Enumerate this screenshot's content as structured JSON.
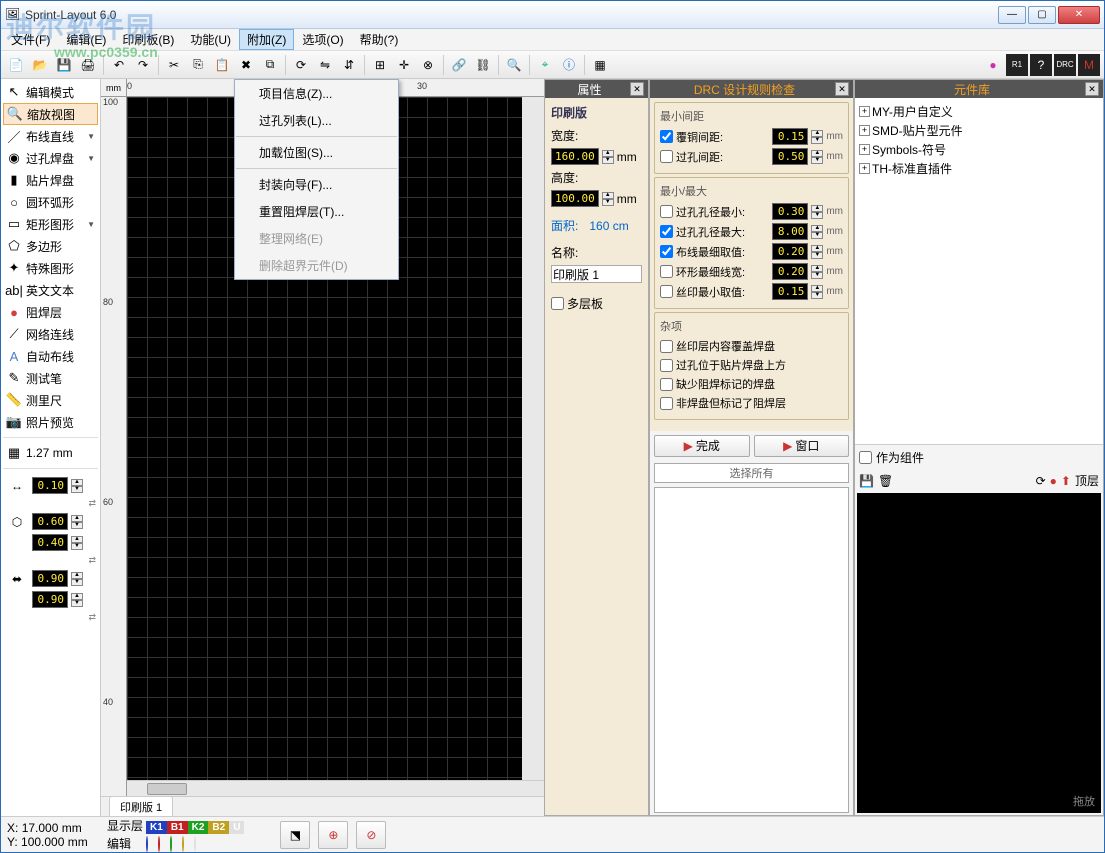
{
  "window": {
    "title": "Sprint-Layout 6.0"
  },
  "watermark": {
    "text": "迪尔软件园",
    "url": "www.pc0359.cn"
  },
  "menus": [
    "文件(F)",
    "编辑(E)",
    "印刷板(B)",
    "功能(U)",
    "附加(Z)",
    "选项(O)",
    "帮助(?)"
  ],
  "menu_active": 4,
  "dropdown": {
    "items": [
      {
        "label": "项目信息(Z)...",
        "enabled": true
      },
      {
        "label": "过孔列表(L)...",
        "enabled": true
      },
      {
        "sep": true
      },
      {
        "label": "加载位图(S)...",
        "enabled": true
      },
      {
        "sep": true
      },
      {
        "label": "封装向导(F)...",
        "enabled": true
      },
      {
        "label": "重置阻焊层(T)...",
        "enabled": true
      },
      {
        "label": "整理网络(E)",
        "enabled": false
      },
      {
        "label": "删除超界元件(D)",
        "enabled": false
      }
    ]
  },
  "tools": [
    {
      "icon": "↖",
      "label": "编辑模式"
    },
    {
      "icon": "🔍",
      "label": "缩放视图",
      "active": true
    },
    {
      "icon": "／",
      "label": "布线直线",
      "drop": true
    },
    {
      "icon": "◉",
      "label": "过孔焊盘",
      "drop": true
    },
    {
      "icon": "▮",
      "label": "贴片焊盘"
    },
    {
      "icon": "○",
      "label": "圆环弧形"
    },
    {
      "icon": "▭",
      "label": "矩形图形",
      "drop": true
    },
    {
      "icon": "⬠",
      "label": "多边形"
    },
    {
      "icon": "✦",
      "label": "特殊图形"
    },
    {
      "icon": "ab|",
      "label": "英文文本"
    },
    {
      "icon": "●",
      "label": "阻焊层",
      "color": "#d04040"
    },
    {
      "icon": "⟋",
      "label": "网络连线"
    },
    {
      "icon": "A",
      "label": "自动布线",
      "color": "#4a7dc7"
    },
    {
      "icon": "✎",
      "label": "测试笔"
    },
    {
      "icon": "📏",
      "label": "测里尺"
    },
    {
      "icon": "📷",
      "label": "照片预览"
    }
  ],
  "grid": {
    "icon": "▦",
    "value": "1.27 mm"
  },
  "params": [
    {
      "icon": "↔",
      "values": [
        "0.10"
      ]
    },
    {
      "icon": "⬡",
      "values": [
        "0.60",
        "0.40"
      ]
    },
    {
      "icon": "⬌",
      "values": [
        "0.90",
        "0.90"
      ]
    }
  ],
  "ruler": {
    "unit": "mm",
    "h_ticks": [
      {
        "pos": 0,
        "label": "0"
      },
      {
        "pos": 290,
        "label": "30"
      }
    ],
    "v_ticks": [
      {
        "pos": 0,
        "label": "100"
      },
      {
        "pos": 200,
        "label": "80"
      },
      {
        "pos": 400,
        "label": "60"
      },
      {
        "pos": 600,
        "label": "40"
      }
    ]
  },
  "tab_name": "印刷版 1",
  "props": {
    "title": "属性",
    "section": "印刷版",
    "width_label": "宽度:",
    "width": "160.00",
    "unit": "mm",
    "height_label": "高度:",
    "height": "100.00",
    "area_label": "面积:",
    "area": "160 cm",
    "name_label": "名称:",
    "name": "印刷版 1",
    "multilayer": "多层板"
  },
  "drc": {
    "title": "DRC 设计规则检查",
    "groups": [
      {
        "title": "最小间距",
        "rows": [
          {
            "chk": true,
            "label": "覆铜间距:",
            "val": "0.15",
            "unit": "mm"
          },
          {
            "chk": false,
            "label": "过孔间距:",
            "val": "0.50",
            "unit": "mm"
          }
        ]
      },
      {
        "title": "最小/最大",
        "rows": [
          {
            "chk": false,
            "label": "过孔孔径最小:",
            "val": "0.30",
            "unit": "mm"
          },
          {
            "chk": true,
            "label": "过孔孔径最大:",
            "val": "8.00",
            "unit": "mm"
          },
          {
            "chk": true,
            "label": "布线最细取值:",
            "val": "0.20",
            "unit": "mm"
          },
          {
            "chk": false,
            "label": "环形最细线宽:",
            "val": "0.20",
            "unit": "mm"
          },
          {
            "chk": false,
            "label": "丝印最小取值:",
            "val": "0.15",
            "unit": "mm"
          }
        ]
      },
      {
        "title": "杂项",
        "rows": [
          {
            "chk": false,
            "label": "丝印层内容覆盖焊盘"
          },
          {
            "chk": false,
            "label": "过孔位于贴片焊盘上方"
          },
          {
            "chk": false,
            "label": "缺少阻焊标记的焊盘"
          },
          {
            "chk": false,
            "label": "非焊盘但标记了阻焊层"
          }
        ]
      }
    ],
    "btn_done": "完成",
    "btn_window": "窗口",
    "select_all": "选择所有"
  },
  "lib": {
    "title": "元件库",
    "nodes": [
      "MY-用户自定义",
      "SMD-贴片型元件",
      "Symbols-符号",
      "TH-标准直插件"
    ],
    "as_component": "作为组件",
    "top_layer": "顶层",
    "drag_hint": "拖放"
  },
  "status": {
    "x_label": "X:",
    "x": "17.000 mm",
    "y_label": "Y:",
    "y": "100.000 mm",
    "show_layer": "显示层",
    "edit": "编辑",
    "layers": [
      {
        "name": "K1",
        "color": "#2040c0"
      },
      {
        "name": "B1",
        "color": "#c02020"
      },
      {
        "name": "K2",
        "color": "#20a020"
      },
      {
        "name": "B2",
        "color": "#c0a020"
      },
      {
        "name": "U",
        "color": "#e0e0e0"
      }
    ]
  },
  "colors": {
    "param_bg": "#000000",
    "param_fg": "#ffeb3b",
    "panel_bg": "#f4ead8",
    "accent": "#f4a020"
  }
}
